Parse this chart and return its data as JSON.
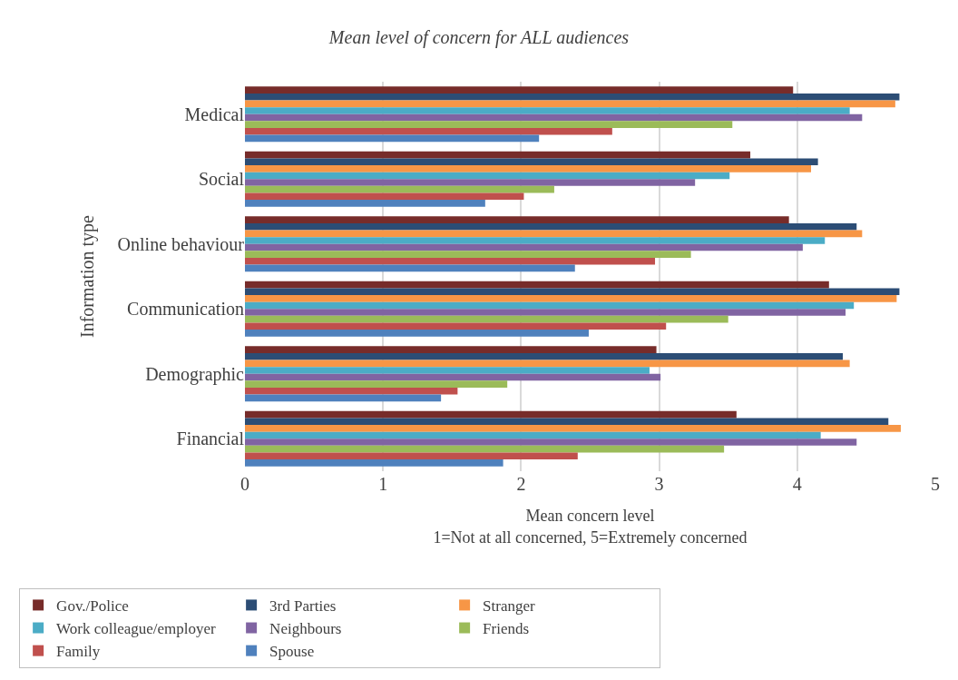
{
  "chart_data": {
    "type": "bar",
    "orientation": "horizontal",
    "title": "Mean level of concern for ALL audiences",
    "xlabel": "Mean concern level\n1=Not at all concerned, 5=Extremely concerned",
    "ylabel": "Information type",
    "categories": [
      "Medical",
      "Social",
      "Online behaviour",
      "Communication",
      "Demographic",
      "Financial"
    ],
    "series": [
      {
        "name": "Gov./Police",
        "color": "#772c2a",
        "values": [
          3.97,
          3.66,
          3.94,
          4.23,
          2.98,
          3.56
        ]
      },
      {
        "name": "3rd Parties",
        "color": "#2c4d75",
        "values": [
          4.74,
          4.15,
          4.43,
          4.74,
          4.33,
          4.66
        ]
      },
      {
        "name": "Stranger",
        "color": "#f79646",
        "values": [
          4.71,
          4.1,
          4.47,
          4.72,
          4.38,
          4.75
        ]
      },
      {
        "name": "Work colleague/employer",
        "color": "#4bacc6",
        "values": [
          4.38,
          3.51,
          4.2,
          4.41,
          2.93,
          4.17
        ]
      },
      {
        "name": "Neighbours",
        "color": "#8064a2",
        "values": [
          4.47,
          3.26,
          4.04,
          4.35,
          3.01,
          4.43
        ]
      },
      {
        "name": "Friends",
        "color": "#9bbb59",
        "values": [
          3.53,
          2.24,
          3.23,
          3.5,
          1.9,
          3.47
        ]
      },
      {
        "name": "Family",
        "color": "#c0504d",
        "values": [
          2.66,
          2.02,
          2.97,
          3.05,
          1.54,
          2.41
        ]
      },
      {
        "name": "Spouse",
        "color": "#4f81bd",
        "values": [
          2.13,
          1.74,
          2.39,
          2.49,
          1.42,
          1.87
        ]
      }
    ],
    "xlim": [
      0,
      5
    ],
    "xticks": [
      0,
      1,
      2,
      3,
      4,
      5
    ],
    "grid": "x",
    "legend": "bottom"
  }
}
